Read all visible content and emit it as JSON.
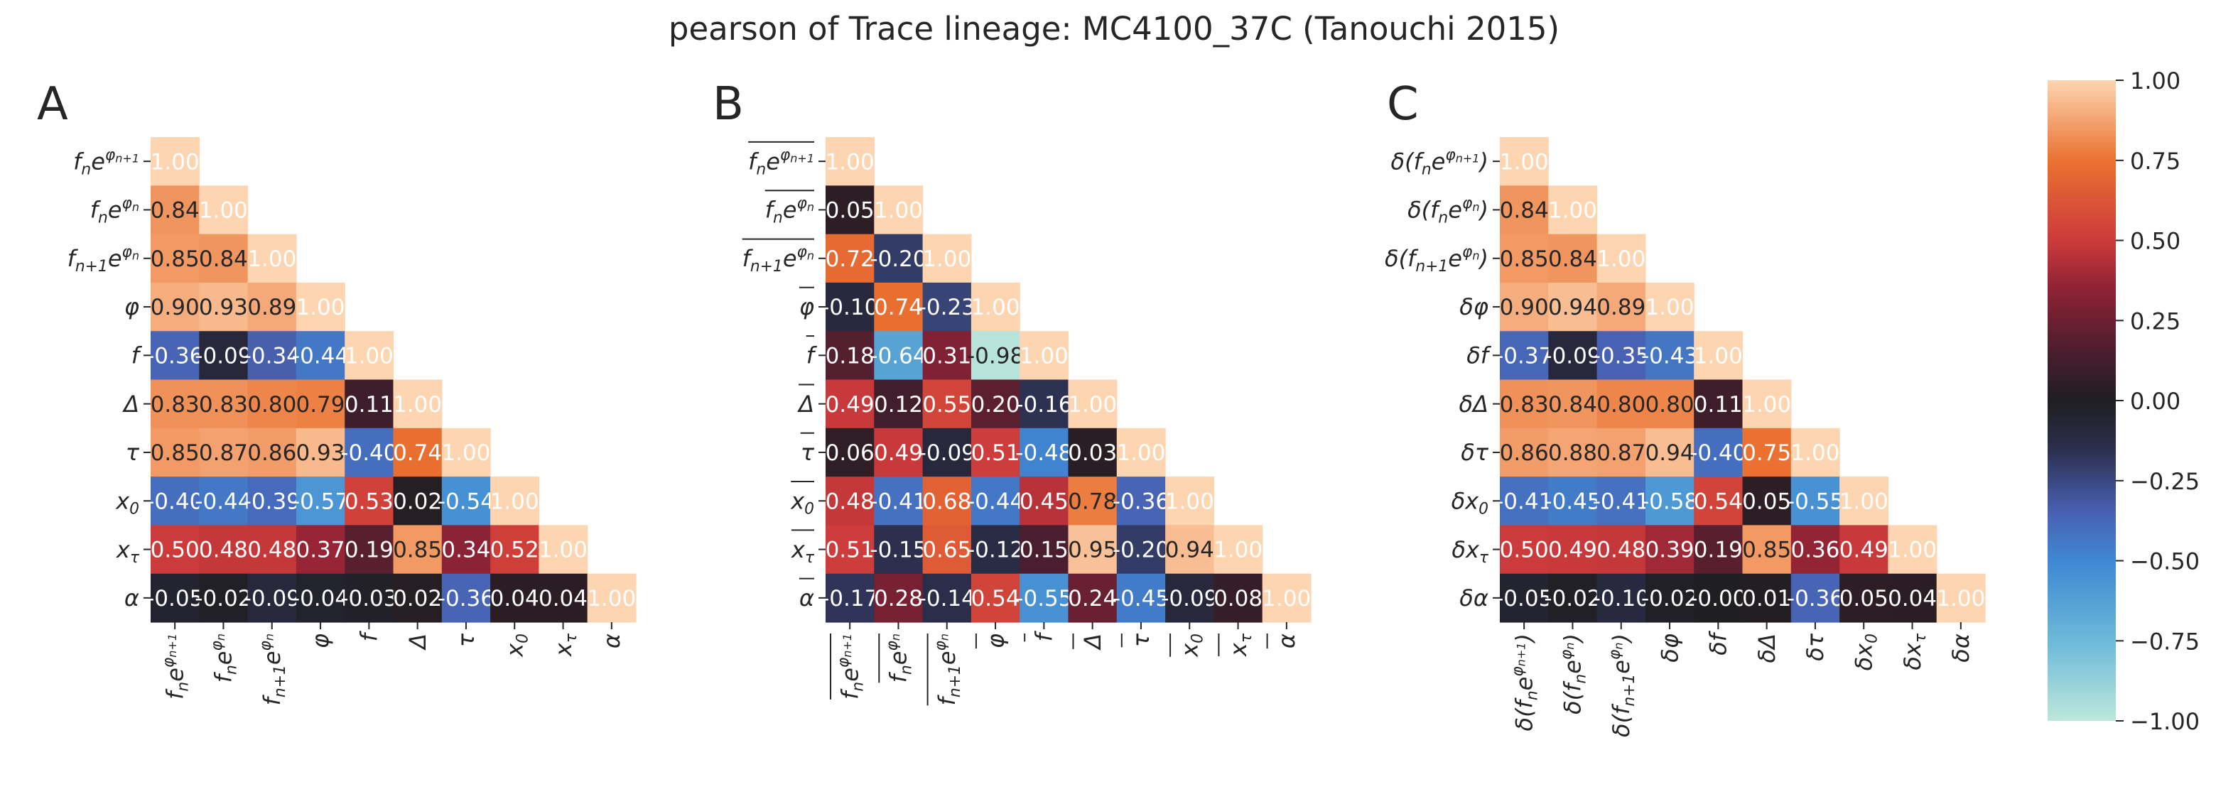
{
  "figure": {
    "title": "pearson of Trace lineage: MC4100_37C (Tanouchi 2015)"
  },
  "colorbar": {
    "range": [
      -1.0,
      1.0
    ],
    "ticks": [
      "1.00",
      "0.75",
      "0.50",
      "0.25",
      "0.00",
      "−0.25",
      "−0.50",
      "−0.75",
      "−1.00"
    ],
    "colormap": "icefire",
    "stops": [
      {
        "v": -1.0,
        "color": "#bde7db"
      },
      {
        "v": -0.75,
        "color": "#6cb9d9"
      },
      {
        "v": -0.5,
        "color": "#3f88d3"
      },
      {
        "v": -0.35,
        "color": "#4961b3"
      },
      {
        "v": -0.15,
        "color": "#2c2f4e"
      },
      {
        "v": 0.0,
        "color": "#1f1e21"
      },
      {
        "v": 0.15,
        "color": "#4a1e2e"
      },
      {
        "v": 0.35,
        "color": "#8f2235"
      },
      {
        "v": 0.5,
        "color": "#cc3b3b"
      },
      {
        "v": 0.75,
        "color": "#ea7131"
      },
      {
        "v": 1.0,
        "color": "#fdd5b0"
      }
    ]
  },
  "chart_data": [
    {
      "type": "heatmap",
      "panel": "A",
      "mask": "upper-triangle",
      "row_labels": [
        "f_n e^{φ_{n+1}}",
        "f_n e^{φ_n}",
        "f_{n+1} e^{φ_n}",
        "φ",
        "f",
        "Δ",
        "τ",
        "x_0",
        "x_τ",
        "α"
      ],
      "col_labels": [
        "f_n e^{φ_{n+1}}",
        "f_n e^{φ_n}",
        "f_{n+1} e^{φ_n}",
        "φ",
        "f",
        "Δ",
        "τ",
        "x_0",
        "x_τ",
        "α"
      ],
      "values": [
        [
          1.0
        ],
        [
          0.84,
          1.0
        ],
        [
          0.85,
          0.84,
          1.0
        ],
        [
          0.9,
          0.93,
          0.89,
          1.0
        ],
        [
          -0.36,
          -0.09,
          -0.34,
          -0.44,
          1.0
        ],
        [
          0.83,
          0.83,
          0.8,
          0.79,
          0.11,
          1.0
        ],
        [
          0.85,
          0.87,
          0.86,
          0.93,
          -0.4,
          0.74,
          1.0
        ],
        [
          -0.4,
          -0.44,
          -0.39,
          -0.57,
          0.53,
          0.02,
          -0.54,
          1.0
        ],
        [
          0.5,
          0.48,
          0.48,
          0.37,
          0.19,
          0.85,
          0.34,
          0.52,
          1.0
        ],
        [
          -0.05,
          -0.02,
          -0.09,
          -0.04,
          -0.03,
          0.02,
          -0.36,
          0.04,
          0.04,
          1.0
        ]
      ],
      "cell_text": [
        [
          "1.00"
        ],
        [
          "0.84",
          "1.00"
        ],
        [
          "0.85",
          "0.84",
          "1.00"
        ],
        [
          "0.90",
          "0.93",
          "0.89",
          "1.00"
        ],
        [
          "-0.36",
          "-0.09",
          "-0.34",
          "-0.44",
          "1.00"
        ],
        [
          "0.83",
          "0.83",
          "0.80",
          "0.79",
          "0.11",
          "1.00"
        ],
        [
          "0.85",
          "0.87",
          "0.86",
          "0.93",
          "-0.40",
          "0.74",
          "1.00"
        ],
        [
          "-0.40",
          "-0.44",
          "-0.39",
          "-0.57",
          "0.53",
          "0.02",
          "-0.54",
          "1.00"
        ],
        [
          "0.50",
          "0.48",
          "0.48",
          "0.37",
          "0.19",
          "0.85",
          "0.34",
          "0.52",
          "1.00"
        ],
        [
          "-0.05",
          "-0.02",
          "-0.09",
          "-0.04",
          "-0.03",
          "0.02",
          "-0.36",
          "0.04",
          "0.04",
          "1.00"
        ]
      ]
    },
    {
      "type": "heatmap",
      "panel": "B",
      "mask": "upper-triangle",
      "row_labels": [
        "mean(f_n e^{φ_{n+1}})",
        "mean(f_n e^{φ_n})",
        "mean(f_{n+1} e^{φ_n})",
        "mean(φ)",
        "mean(f)",
        "mean(Δ)",
        "mean(τ)",
        "mean(x_0)",
        "mean(x_τ)",
        "mean(α)"
      ],
      "col_labels": [
        "mean(f_n e^{φ_{n+1}})",
        "mean(f_n e^{φ_n})",
        "mean(f_{n+1} e^{φ_n})",
        "mean(φ)",
        "mean(f)",
        "mean(Δ)",
        "mean(τ)",
        "mean(x_0)",
        "mean(x_τ)",
        "mean(α)"
      ],
      "values": [
        [
          1.0
        ],
        [
          0.05,
          1.0
        ],
        [
          0.72,
          -0.2,
          1.0
        ],
        [
          -0.1,
          0.74,
          -0.23,
          1.0
        ],
        [
          0.18,
          -0.64,
          0.31,
          -0.98,
          1.0
        ],
        [
          0.49,
          0.12,
          0.55,
          0.2,
          -0.16,
          1.0
        ],
        [
          0.06,
          0.49,
          -0.09,
          0.51,
          -0.48,
          0.03,
          1.0
        ],
        [
          0.48,
          -0.41,
          0.68,
          -0.44,
          0.45,
          0.78,
          -0.36,
          1.0
        ],
        [
          0.51,
          -0.15,
          0.65,
          -0.12,
          0.15,
          0.95,
          -0.2,
          0.94,
          1.0
        ],
        [
          -0.17,
          0.28,
          -0.14,
          0.54,
          -0.55,
          0.24,
          -0.45,
          -0.09,
          0.08,
          1.0
        ]
      ],
      "cell_text": [
        [
          "1.00"
        ],
        [
          "0.05",
          "1.00"
        ],
        [
          "0.72",
          "-0.20",
          "1.00"
        ],
        [
          "-0.10",
          "0.74",
          "-0.23",
          "1.00"
        ],
        [
          "0.18",
          "-0.64",
          "0.31",
          "-0.98",
          "1.00"
        ],
        [
          "0.49",
          "0.12",
          "0.55",
          "0.20",
          "-0.16",
          "1.00"
        ],
        [
          "0.06",
          "0.49",
          "-0.09",
          "0.51",
          "-0.48",
          "0.03",
          "1.00"
        ],
        [
          "0.48",
          "-0.41",
          "0.68",
          "-0.44",
          "0.45",
          "0.78",
          "-0.36",
          "1.00"
        ],
        [
          "0.51",
          "-0.15",
          "0.65",
          "-0.12",
          "0.15",
          "0.95",
          "-0.20",
          "0.94",
          "1.00"
        ],
        [
          "-0.17",
          "0.28",
          "-0.14",
          "0.54",
          "-0.55",
          "0.24",
          "-0.45",
          "-0.09",
          "0.08",
          "1.00"
        ]
      ]
    },
    {
      "type": "heatmap",
      "panel": "C",
      "mask": "upper-triangle",
      "row_labels": [
        "δ(f_n e^{φ_{n+1}})",
        "δ(f_n e^{φ_n})",
        "δ(f_{n+1} e^{φ_n})",
        "δφ",
        "δf",
        "δΔ",
        "δτ",
        "δx_0",
        "δx_τ",
        "δα"
      ],
      "col_labels": [
        "δ(f_n e^{φ_{n+1}})",
        "δ(f_n e^{φ_n})",
        "δ(f_{n+1} e^{φ_n})",
        "δφ",
        "δf",
        "δΔ",
        "δτ",
        "δx_0",
        "δx_τ",
        "δα"
      ],
      "values": [
        [
          1.0
        ],
        [
          0.84,
          1.0
        ],
        [
          0.85,
          0.84,
          1.0
        ],
        [
          0.9,
          0.94,
          0.89,
          1.0
        ],
        [
          -0.37,
          -0.09,
          -0.35,
          -0.43,
          1.0
        ],
        [
          0.83,
          0.84,
          0.8,
          0.8,
          0.11,
          1.0
        ],
        [
          0.86,
          0.88,
          0.87,
          0.94,
          -0.4,
          0.75,
          1.0
        ],
        [
          -0.41,
          -0.45,
          -0.41,
          -0.58,
          0.54,
          0.05,
          -0.55,
          1.0
        ],
        [
          0.5,
          0.49,
          0.48,
          0.39,
          0.19,
          0.85,
          0.36,
          0.49,
          1.0
        ],
        [
          -0.05,
          -0.02,
          -0.1,
          -0.02,
          -0.0,
          0.01,
          -0.36,
          0.05,
          0.04,
          1.0
        ]
      ],
      "cell_text": [
        [
          "1.00"
        ],
        [
          "0.84",
          "1.00"
        ],
        [
          "0.85",
          "0.84",
          "1.00"
        ],
        [
          "0.90",
          "0.94",
          "0.89",
          "1.00"
        ],
        [
          "-0.37",
          "-0.09",
          "-0.35",
          "-0.43",
          "1.00"
        ],
        [
          "0.83",
          "0.84",
          "0.80",
          "0.80",
          "0.11",
          "1.00"
        ],
        [
          "0.86",
          "0.88",
          "0.87",
          "0.94",
          "-0.40",
          "0.75",
          "1.00"
        ],
        [
          "-0.41",
          "-0.45",
          "-0.41",
          "-0.58",
          "0.54",
          "0.05",
          "-0.55",
          "1.00"
        ],
        [
          "0.50",
          "0.49",
          "0.48",
          "0.39",
          "0.19",
          "0.85",
          "0.36",
          "0.49",
          "1.00"
        ],
        [
          "-0.05",
          "-0.02",
          "-0.10",
          "-0.02",
          "-0.00",
          "0.01",
          "-0.36",
          "0.05",
          "0.04",
          "1.00"
        ]
      ]
    }
  ]
}
